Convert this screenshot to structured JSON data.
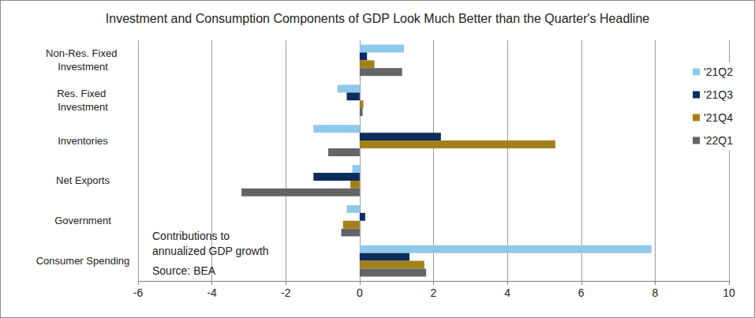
{
  "chart_data": {
    "type": "bar",
    "orientation": "horizontal",
    "title": "Investment and Consumption Components of GDP Look Much Better than the Quarter's Headline",
    "annotations": [
      "Contributions to annualized GDP growth",
      "Source: BEA"
    ],
    "categories": [
      "Non-Res. Fixed Investment",
      "Res. Fixed Investment",
      "Inventories",
      "Net Exports",
      "Government",
      "Consumer Spending"
    ],
    "series": [
      {
        "name": "'21Q2",
        "color": "#8ec9ea",
        "values": [
          1.2,
          -0.6,
          -1.25,
          -0.2,
          -0.35,
          7.9
        ]
      },
      {
        "name": "'21Q3",
        "color": "#0c2d5c",
        "values": [
          0.2,
          -0.35,
          2.2,
          -1.25,
          0.15,
          1.35
        ]
      },
      {
        "name": "'21Q4",
        "color": "#a2801c",
        "values": [
          0.4,
          0.1,
          5.3,
          -0.25,
          -0.45,
          1.75
        ]
      },
      {
        "name": "'22Q1",
        "color": "#636466",
        "values": [
          1.15,
          0.08,
          -0.85,
          -3.2,
          -0.5,
          1.8
        ]
      }
    ],
    "xlim": [
      -6,
      10
    ],
    "xticks": [
      -6,
      -4,
      -2,
      0,
      2,
      4,
      6,
      8,
      10
    ],
    "grid": true,
    "legend": "right"
  }
}
